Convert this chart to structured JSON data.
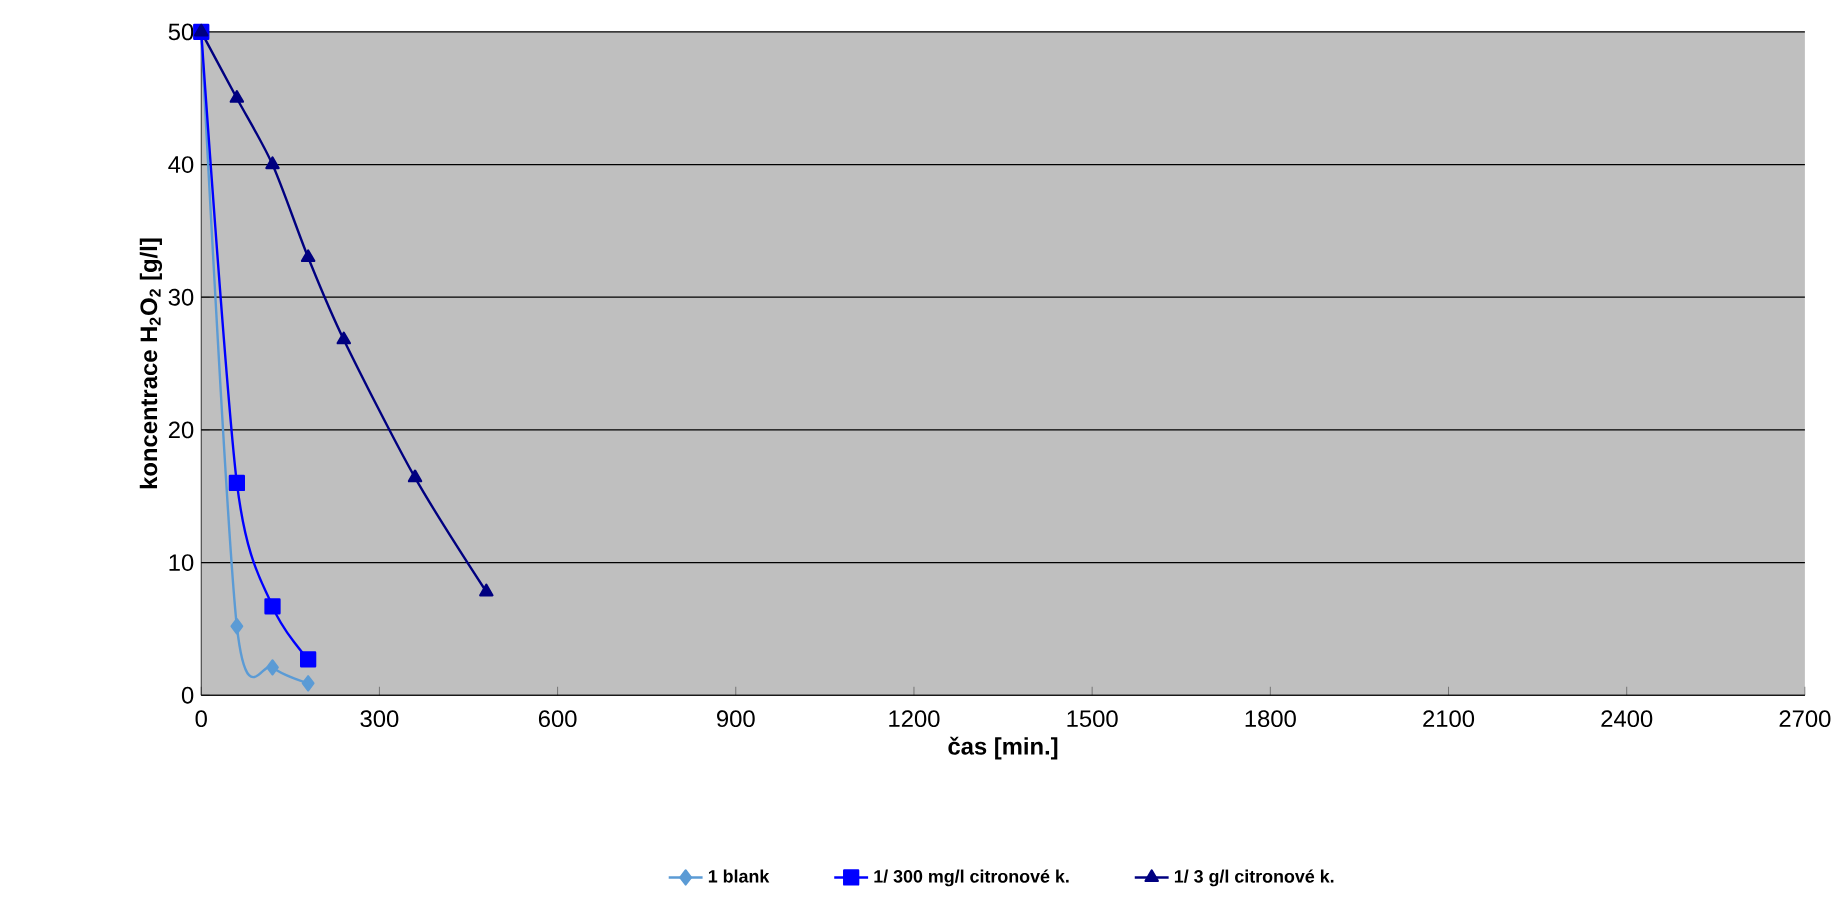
{
  "chart_data": {
    "type": "line",
    "xlabel": "čas [min.]",
    "ylabel": "koncentrace  H$_{2}$O$_{2}$ [g/l]",
    "xlim": [
      0,
      2700
    ],
    "xticks": [
      0,
      300,
      600,
      900,
      1200,
      1500,
      1800,
      2100,
      2400,
      2700
    ],
    "ylim": [
      0,
      50
    ],
    "yticks": [
      0,
      10,
      20,
      30,
      40,
      50
    ],
    "grid": "y",
    "legend": "bottom",
    "series": [
      {
        "name": "1 blank",
        "color": "#5b9bd5",
        "marker": "diamond",
        "x": [
          0,
          60,
          120,
          180
        ],
        "values": [
          50,
          5.2,
          2.1,
          0.9
        ]
      },
      {
        "name": "1/ 300 mg/l citronové k.",
        "color": "#0000ff",
        "marker": "square",
        "x": [
          0,
          60,
          120,
          180
        ],
        "values": [
          50,
          16,
          6.7,
          2.7
        ]
      },
      {
        "name": "1/ 3 g/l citronové k.",
        "color": "#000080",
        "marker": "triangle",
        "x": [
          0,
          60,
          120,
          180,
          240,
          360,
          480
        ],
        "values": [
          50,
          45,
          40,
          33,
          26.8,
          16.4,
          7.8
        ]
      }
    ]
  }
}
